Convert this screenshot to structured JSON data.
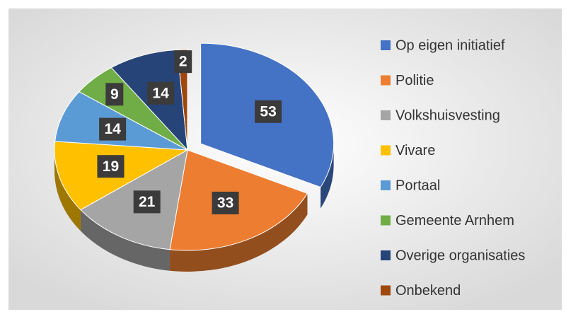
{
  "chart_data": {
    "type": "pie",
    "categories": [
      "Op eigen initiatief",
      "Politie",
      "Volkshuisvesting",
      "Vivare",
      "Portaal",
      "Gemeente Arnhem",
      "Overige organisaties",
      "Onbekend"
    ],
    "values": [
      53,
      33,
      21,
      19,
      14,
      9,
      14,
      2
    ],
    "colors": [
      "#4472c4",
      "#ed7d31",
      "#a5a5a5",
      "#ffc000",
      "#5b9bd5",
      "#70ad47",
      "#264478",
      "#9e480e"
    ],
    "legend": "right"
  }
}
